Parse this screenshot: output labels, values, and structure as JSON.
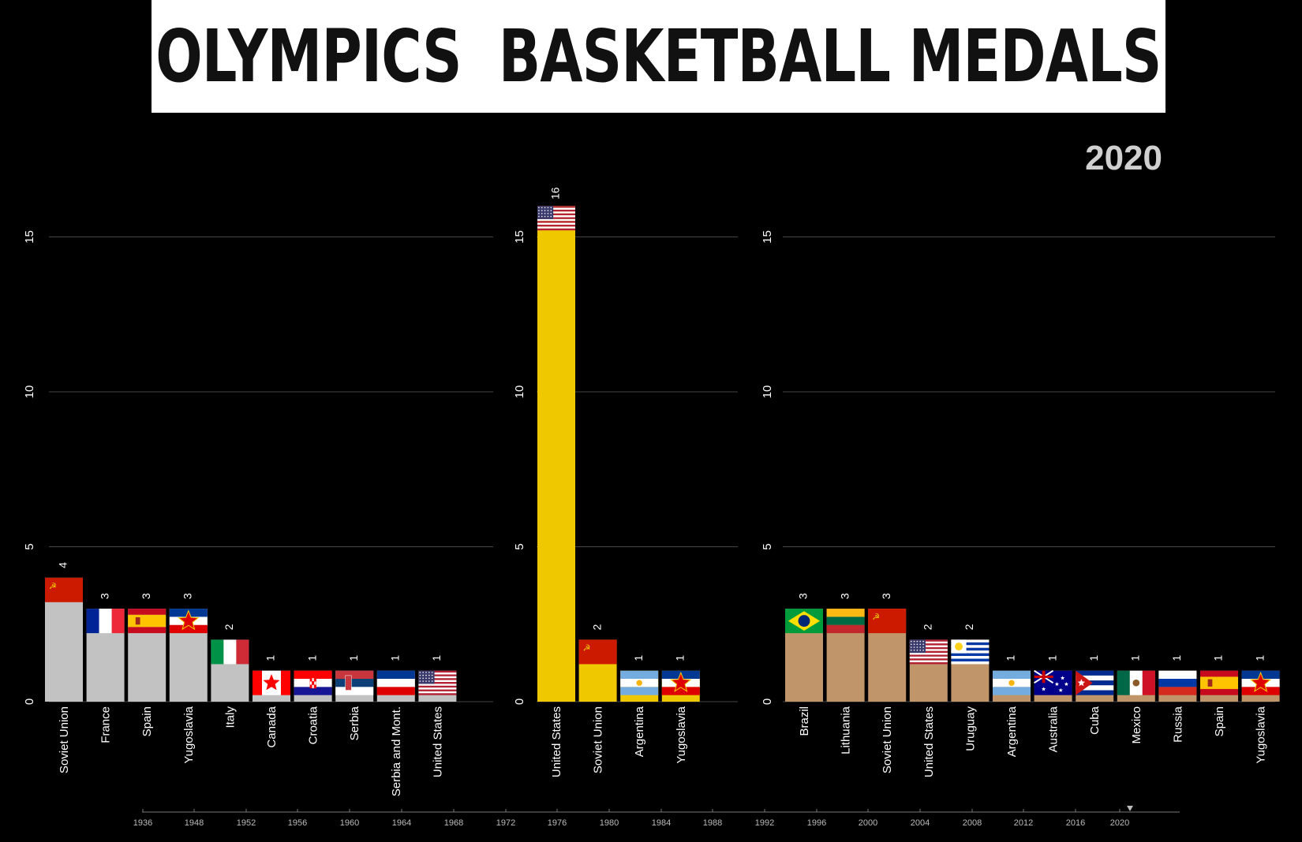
{
  "title": "OLYMPICS  BASKETBALL MEDALS",
  "year": "2020",
  "colors": {
    "background": "#000000",
    "bronze": "#c0956a",
    "silver": "#c2c2c2",
    "gold": "#f0c800",
    "grid": "#444444",
    "axis_text": "#ffffff"
  },
  "chart_data": [
    {
      "type": "bar",
      "medal": "silver",
      "ylim": [
        0,
        17
      ],
      "yticks": [
        0,
        5,
        10,
        15
      ],
      "categories": [
        "Soviet Union",
        "France",
        "Spain",
        "Yugoslavia",
        "Italy",
        "Canada",
        "Croatia",
        "Serbia",
        "Serbia and Mont.",
        "United States"
      ],
      "values": [
        4,
        3,
        3,
        3,
        2,
        1,
        1,
        1,
        1,
        1
      ],
      "value_labels": [
        "4",
        "3",
        "3",
        "3",
        "2",
        "1",
        "1",
        "1",
        "1",
        "1"
      ],
      "flags": [
        "ussr",
        "france",
        "spain",
        "yugoslavia",
        "italy",
        "canada",
        "croatia",
        "serbia",
        "serbia-montenegro",
        "usa"
      ]
    },
    {
      "type": "bar",
      "medal": "gold",
      "ylim": [
        0,
        17
      ],
      "yticks": [
        0,
        5,
        10,
        15
      ],
      "categories": [
        "United States",
        "Soviet Union",
        "Argentina",
        "Yugoslavia"
      ],
      "values": [
        16,
        2,
        1,
        1
      ],
      "value_labels": [
        "16",
        "2",
        "1",
        "1"
      ],
      "flags": [
        "usa",
        "ussr",
        "argentina",
        "yugoslavia"
      ]
    },
    {
      "type": "bar",
      "medal": "bronze",
      "ylim": [
        0,
        17
      ],
      "yticks": [
        0,
        5,
        10,
        15
      ],
      "categories": [
        "Brazil",
        "Lithuania",
        "Soviet Union",
        "United States",
        "Uruguay",
        "Argentina",
        "Australia",
        "Cuba",
        "Mexico",
        "Russia",
        "Spain",
        "Yugoslavia"
      ],
      "values": [
        3,
        3,
        3,
        2,
        2,
        1,
        1,
        1,
        1,
        1,
        1,
        1
      ],
      "value_labels": [
        "3",
        "3",
        "3",
        "2",
        "2",
        "1",
        "1",
        "1",
        "1",
        "1",
        "1",
        "1"
      ],
      "flags": [
        "brazil",
        "lithuania",
        "ussr",
        "usa",
        "uruguay",
        "argentina",
        "australia",
        "cuba",
        "mexico",
        "russia",
        "spain",
        "yugoslavia"
      ]
    }
  ],
  "timeline": {
    "ticks": [
      "1936",
      "1948",
      "1952",
      "1956",
      "1960",
      "1964",
      "1968",
      "1972",
      "1976",
      "1980",
      "1984",
      "1988",
      "1992",
      "1996",
      "2000",
      "2004",
      "2008",
      "2012",
      "2016",
      "2020"
    ],
    "current": "2020"
  }
}
